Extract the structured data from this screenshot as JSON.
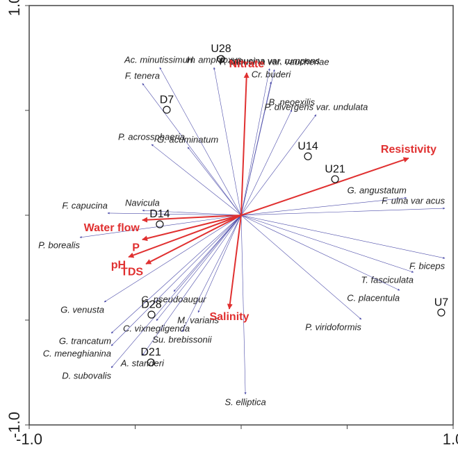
{
  "chart_data": {
    "type": "biplot",
    "xlim": [
      -1,
      1
    ],
    "ylim": [
      -1,
      1
    ],
    "xticks": [
      {
        "value": -1,
        "label": "-1.0"
      },
      {
        "value": 1,
        "label": "1.0"
      }
    ],
    "yticks": [
      {
        "value": -1,
        "label": "-1.0"
      },
      {
        "value": 1,
        "label": "1.0"
      }
    ],
    "xminor": [
      -0.5,
      0,
      0.5
    ],
    "yminor": [
      -0.5,
      0,
      0.5
    ],
    "species": {
      "color": "#4a4aa8",
      "names": [
        "F. capucina var. rumpens",
        "F. capucina var. vaucheriae",
        "Cr. buderi",
        "Ac. minutissimum",
        "H. amphioxys",
        "F. tenera",
        "B. neoexilis",
        "P. divergens var. undulata",
        "P. acrossphaeria",
        "G. acuminatum",
        "Navicula",
        "F. capucina",
        "P. borealis",
        "G. angustatum",
        "F. ulna var acus",
        "F. biceps",
        "T. fasciculata",
        "C. placentula",
        "P. viridoformis",
        "G. pseudoaugur",
        "G. venusta",
        "C. vixnegligenda",
        "G. trancatum",
        "C. meneghianina",
        "A. standeri",
        "D. subovalis",
        "M. varians",
        "Su. brebissonii",
        "S. elliptica"
      ],
      "x": [
        0.134,
        0.157,
        0.141,
        -0.384,
        -0.128,
        -0.466,
        0.239,
        0.354,
        -0.423,
        -0.252,
        -0.466,
        -0.63,
        -0.761,
        0.78,
        0.961,
        0.961,
        0.813,
        0.748,
        0.567,
        -0.318,
        -0.646,
        -0.4,
        -0.613,
        -0.613,
        -0.466,
        -0.613,
        -0.203,
        -0.279,
        0.02
      ],
      "y": [
        0.7,
        0.695,
        0.636,
        0.705,
        0.705,
        0.629,
        0.503,
        0.48,
        0.338,
        0.325,
        0.023,
        0.01,
        -0.106,
        0.083,
        0.033,
        -0.205,
        -0.272,
        -0.358,
        -0.497,
        -0.364,
        -0.414,
        -0.503,
        -0.563,
        -0.623,
        -0.669,
        -0.728,
        -0.464,
        -0.556,
        -0.854
      ]
    },
    "environment": {
      "color": "#e03030",
      "names": [
        "Nitrate",
        "Resistivity",
        "Water flow",
        "P",
        "pH",
        "TDS",
        "Salinity"
      ],
      "x": [
        0.026,
        0.79,
        -0.466,
        -0.466,
        -0.531,
        -0.449,
        -0.056
      ],
      "y": [
        0.679,
        0.272,
        -0.023,
        -0.116,
        -0.199,
        -0.232,
        -0.447
      ]
    },
    "sites": {
      "names": [
        "U28",
        "D7",
        "U14",
        "U21",
        "D14",
        "D28",
        "D21",
        "U7"
      ],
      "x": [
        -0.095,
        -0.351,
        0.315,
        0.443,
        -0.384,
        -0.423,
        -0.426,
        0.944
      ],
      "y": [
        0.745,
        0.503,
        0.281,
        0.172,
        -0.043,
        -0.474,
        -0.702,
        -0.464
      ]
    }
  }
}
